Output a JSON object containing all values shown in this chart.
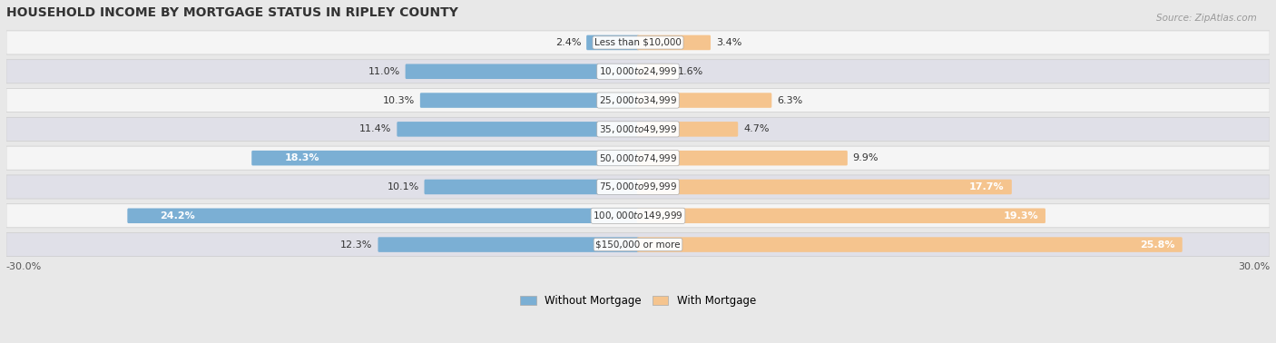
{
  "title": "HOUSEHOLD INCOME BY MORTGAGE STATUS IN RIPLEY COUNTY",
  "source": "Source: ZipAtlas.com",
  "categories": [
    "Less than $10,000",
    "$10,000 to $24,999",
    "$25,000 to $34,999",
    "$35,000 to $49,999",
    "$50,000 to $74,999",
    "$75,000 to $99,999",
    "$100,000 to $149,999",
    "$150,000 or more"
  ],
  "without_mortgage": [
    2.4,
    11.0,
    10.3,
    11.4,
    18.3,
    10.1,
    24.2,
    12.3
  ],
  "with_mortgage": [
    3.4,
    1.6,
    6.3,
    4.7,
    9.9,
    17.7,
    19.3,
    25.8
  ],
  "color_without": "#7bafd4",
  "color_with": "#f5c48e",
  "bg_color": "#e8e8e8",
  "row_bg_colors": [
    "#f5f5f5",
    "#e0e0e8"
  ],
  "xlim": 30.0,
  "title_fontsize": 10,
  "bar_label_fontsize": 8,
  "cat_label_fontsize": 7.5,
  "tick_fontsize": 8
}
